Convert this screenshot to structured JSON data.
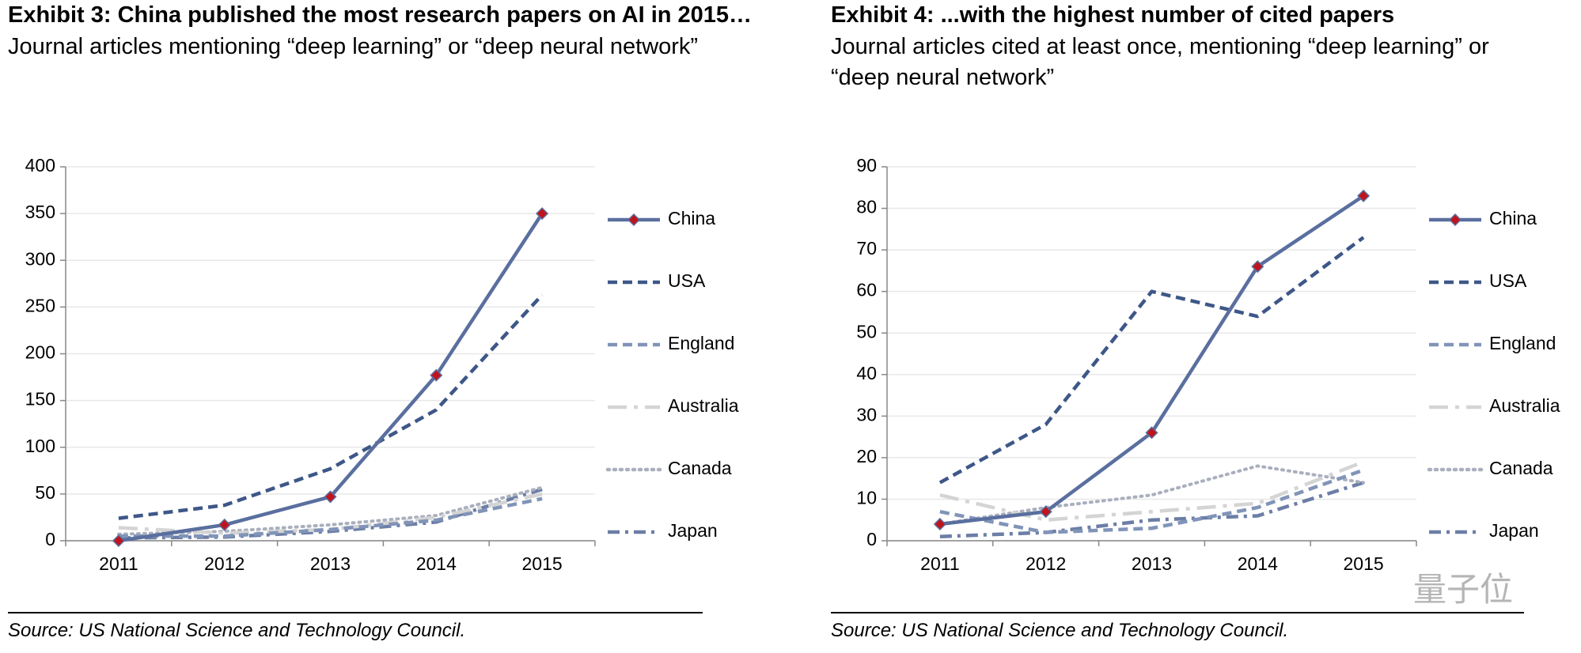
{
  "chart_data": [
    {
      "type": "line",
      "title": "Exhibit 3: China published the most research papers on AI in 2015…",
      "subtitle": "Journal articles mentioning “deep learning” or “deep neural network”",
      "source": "Source: US National Science and Technology Council.",
      "categories": [
        "2011",
        "2012",
        "2013",
        "2014",
        "2015"
      ],
      "ylim": [
        0,
        400
      ],
      "yticks": [
        0,
        50,
        100,
        150,
        200,
        250,
        300,
        350,
        400
      ],
      "grid": true,
      "legend": "right",
      "series": [
        {
          "name": "China",
          "color": "#5a6f9f",
          "dash": "none",
          "marker": "diamond",
          "marker_color": "#c0141c",
          "values": [
            0,
            17,
            47,
            177,
            350
          ]
        },
        {
          "name": "USA",
          "color": "#3e5788",
          "dash": "12,7",
          "values": [
            24,
            38,
            77,
            140,
            263
          ]
        },
        {
          "name": "England",
          "color": "#8194b8",
          "dash": "12,7",
          "values": [
            5,
            5,
            12,
            22,
            45
          ]
        },
        {
          "name": "Australia",
          "color": "#d4d4d4",
          "dash": "24,9,5,9",
          "values": [
            14,
            8,
            12,
            25,
            50
          ]
        },
        {
          "name": "Canada",
          "color": "#a9afbd",
          "dash": "2,6",
          "values": [
            7,
            10,
            17,
            27,
            57
          ]
        },
        {
          "name": "Japan",
          "color": "#6b7ea6",
          "dash": "15,7,4,7",
          "values": [
            3,
            4,
            10,
            20,
            55
          ]
        }
      ]
    },
    {
      "type": "line",
      "title": "Exhibit 4: ...with the highest number of cited papers",
      "subtitle": "Journal articles cited at least once, mentioning “deep learning” or “deep neural network”",
      "source": "Source: US National Science and Technology Council.",
      "categories": [
        "2011",
        "2012",
        "2013",
        "2014",
        "2015"
      ],
      "ylim": [
        0,
        90
      ],
      "yticks": [
        0,
        10,
        20,
        30,
        40,
        50,
        60,
        70,
        80,
        90
      ],
      "grid": true,
      "legend": "right",
      "series": [
        {
          "name": "China",
          "color": "#5a6f9f",
          "dash": "none",
          "marker": "diamond",
          "marker_color": "#c0141c",
          "values": [
            4,
            7,
            26,
            66,
            83
          ]
        },
        {
          "name": "USA",
          "color": "#3e5788",
          "dash": "12,7",
          "values": [
            14,
            28,
            60,
            54,
            73
          ]
        },
        {
          "name": "England",
          "color": "#8194b8",
          "dash": "12,7",
          "values": [
            7,
            2,
            3,
            8,
            17
          ]
        },
        {
          "name": "Australia",
          "color": "#d4d4d4",
          "dash": "24,9,5,9",
          "values": [
            11,
            5,
            7,
            9,
            19
          ]
        },
        {
          "name": "Canada",
          "color": "#a9afbd",
          "dash": "2,6",
          "values": [
            4,
            8,
            11,
            18,
            14
          ]
        },
        {
          "name": "Japan",
          "color": "#6b7ea6",
          "dash": "15,7,4,7",
          "values": [
            1,
            2,
            5,
            6,
            14
          ]
        }
      ]
    }
  ],
  "watermark": "量子位"
}
